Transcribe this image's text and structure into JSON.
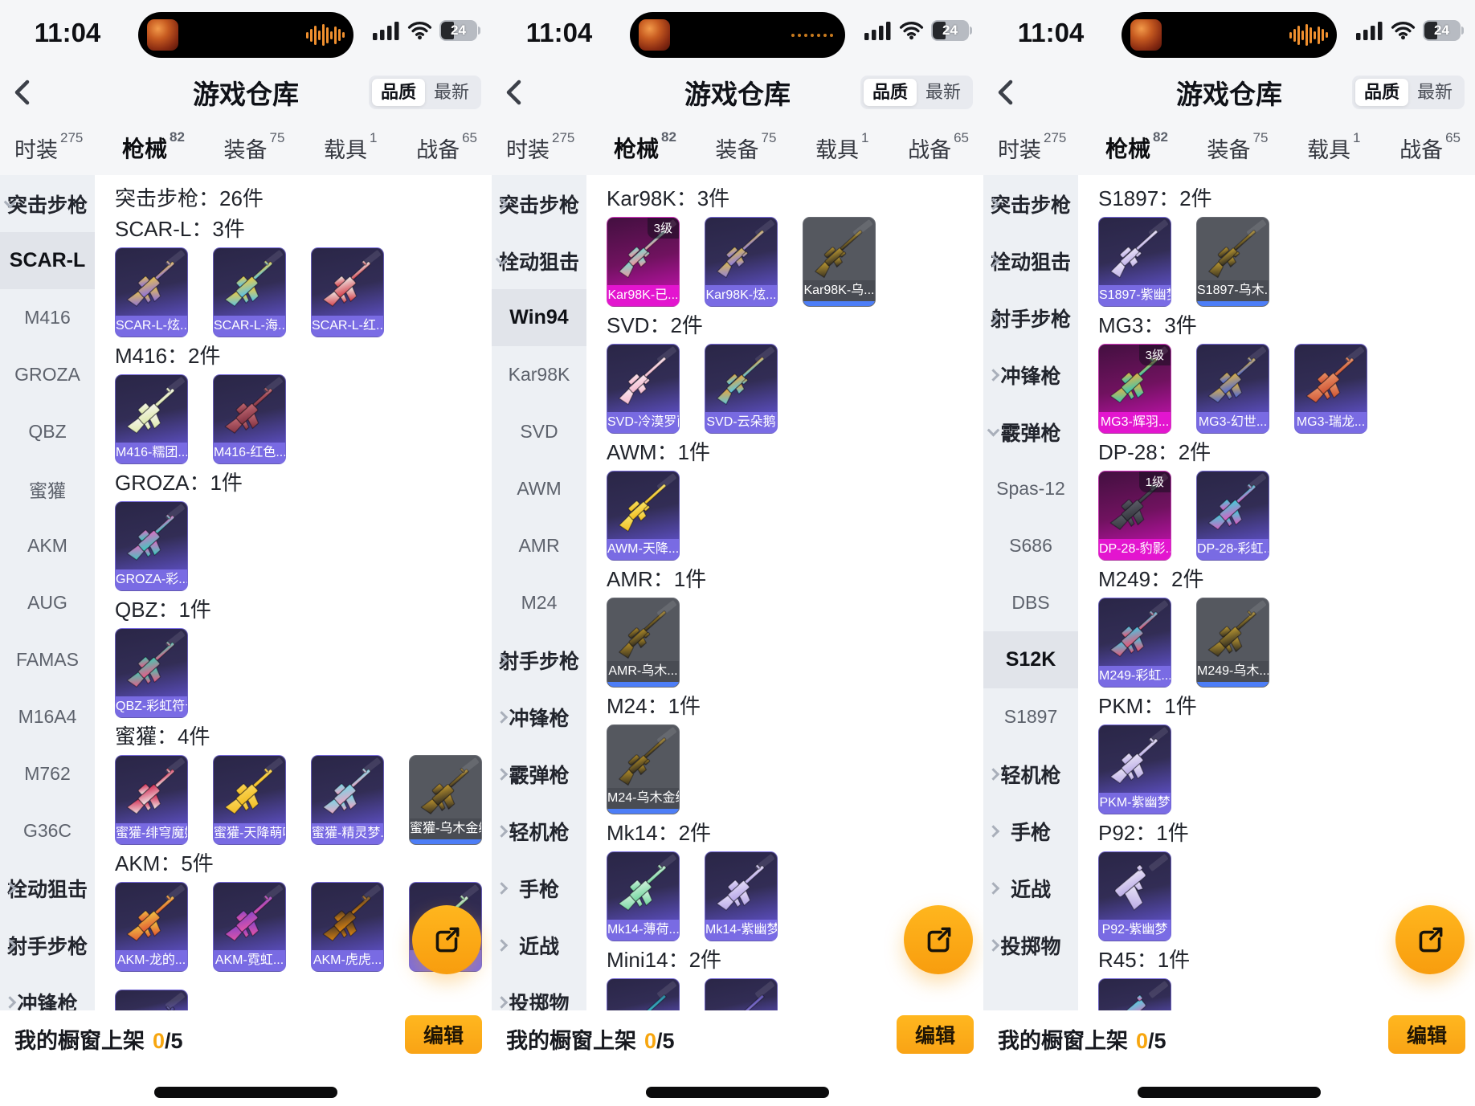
{
  "shared": {
    "time": "11:04",
    "battery": "24",
    "title": "游戏仓库",
    "sort_options": [
      "品质",
      "最新"
    ],
    "sort_active": "品质",
    "tabs": [
      {
        "label": "时装",
        "count": "275",
        "active": false
      },
      {
        "label": "枪械",
        "count": "82",
        "active": true
      },
      {
        "label": "装备",
        "count": "75",
        "active": false
      },
      {
        "label": "载具",
        "count": "1",
        "active": false
      },
      {
        "label": "战备",
        "count": "65",
        "active": false
      }
    ],
    "shelf_label": "我的橱窗上架",
    "shelf_count": "0",
    "shelf_total": "/5",
    "edit_button": "编辑",
    "icons": {
      "back": "back-chevron",
      "share": "share-export",
      "signal": "cellular-signal",
      "wifi": "wifi",
      "battery": "battery-24"
    },
    "colors": {
      "accent_orange": "#F9A315",
      "purple_rarity": "#6F61DD",
      "pink_rarity": "#E315CF",
      "blue_quality_bar": "#4D7EF7",
      "sidebar_bg": "#EDF0F4"
    }
  },
  "panels": [
    {
      "island": "waveform",
      "sidebar": [
        {
          "t": "cat",
          "label": "突击步枪",
          "state": "expanded"
        },
        {
          "t": "sub",
          "label": "SCAR-L",
          "selected": true
        },
        {
          "t": "sub",
          "label": "M416"
        },
        {
          "t": "sub",
          "label": "GROZA"
        },
        {
          "t": "sub",
          "label": "QBZ"
        },
        {
          "t": "sub",
          "label": "蜜獾"
        },
        {
          "t": "sub",
          "label": "AKM"
        },
        {
          "t": "sub",
          "label": "AUG"
        },
        {
          "t": "sub",
          "label": "FAMAS"
        },
        {
          "t": "sub",
          "label": "M16A4"
        },
        {
          "t": "sub",
          "label": "M762"
        },
        {
          "t": "sub",
          "label": "G36C"
        },
        {
          "t": "cat",
          "label": "栓动狙击",
          "state": "collapsed"
        },
        {
          "t": "cat",
          "label": "射手步枪",
          "state": "collapsed"
        },
        {
          "t": "cat",
          "label": "冲锋枪",
          "state": "collapsed"
        }
      ],
      "sections": [
        {
          "title": "突击步枪：26件",
          "items": []
        },
        {
          "title": "SCAR-L：3件",
          "items": [
            {
              "label": "SCAR-L-炫...",
              "rarity": "purple",
              "gun": "rifle",
              "colors": [
                "#8a6fe0",
                "#e6c050"
              ]
            },
            {
              "label": "SCAR-L-海...",
              "rarity": "purple",
              "gun": "rifle",
              "colors": [
                "#53c2f0",
                "#f2cb3e"
              ]
            },
            {
              "label": "SCAR-L-红...",
              "rarity": "purple",
              "gun": "rifle",
              "colors": [
                "#d23441",
                "#f0eeea"
              ]
            }
          ]
        },
        {
          "title": "M416：2件",
          "items": [
            {
              "label": "M416-糯团...",
              "rarity": "purple",
              "gun": "rifle",
              "colors": [
                "#dce8a8",
                "#f6f6ee"
              ]
            },
            {
              "label": "M416-红色...",
              "rarity": "purple",
              "gun": "rifle",
              "colors": [
                "#7e2e3e",
                "#c26a74"
              ]
            }
          ]
        },
        {
          "title": "GROZA：1件",
          "items": [
            {
              "label": "GROZA-彩...",
              "rarity": "purple",
              "gun": "rifle",
              "colors": [
                "#35cfc0",
                "#e06ac2"
              ]
            }
          ]
        },
        {
          "title": "QBZ：1件",
          "items": [
            {
              "label": "QBZ-彩虹符号",
              "rarity": "purple",
              "gun": "rifle",
              "colors": [
                "#ef5585",
                "#43c9b2"
              ]
            }
          ]
        },
        {
          "title": "蜜獾：4件",
          "items": [
            {
              "label": "蜜獾-绯穹魔姬",
              "rarity": "purple",
              "gun": "rifle",
              "colors": [
                "#f2eaea",
                "#d22a52"
              ]
            },
            {
              "label": "蜜獾-天降萌叽",
              "rarity": "purple",
              "gun": "rifle",
              "colors": [
                "#f2ba1e",
                "#fad75c"
              ]
            },
            {
              "label": "蜜獾-精灵梦...",
              "rarity": "purple",
              "gun": "rifle",
              "colors": [
                "#f2a2c2",
                "#74d8e8"
              ]
            },
            {
              "label": "蜜獾-乌木金纹",
              "rarity": "gray",
              "gun": "rifle",
              "colors": [
                "#2c2822",
                "#c2982e"
              ]
            }
          ]
        },
        {
          "title": "AKM：5件",
          "items": [
            {
              "label": "AKM-龙的...",
              "rarity": "purple",
              "gun": "rifle",
              "colors": [
                "#e05433",
                "#f1c343"
              ]
            },
            {
              "label": "AKM-霓虹...",
              "rarity": "purple",
              "gun": "rifle",
              "colors": [
                "#e653a6",
                "#8a46c6"
              ]
            },
            {
              "label": "AKM-虎虎...",
              "rarity": "purple",
              "gun": "rifle",
              "colors": [
                "#e2870f",
                "#4a3826"
              ]
            },
            {
              "label": "",
              "rarity": "purple",
              "gun": "rifle",
              "colors": [
                "#57c468",
                "#ececec"
              ]
            },
            {
              "label": "",
              "rarity": "purple",
              "gun": "rifle",
              "colors": [
                "#4a4480",
                "#5a54a0"
              ],
              "partial": 44
            }
          ]
        }
      ]
    },
    {
      "island": "dots",
      "sidebar": [
        {
          "t": "cat",
          "label": "突击步枪",
          "state": "collapsed"
        },
        {
          "t": "cat",
          "label": "栓动狙击",
          "state": "expanded"
        },
        {
          "t": "sub",
          "label": "Win94",
          "selected": true
        },
        {
          "t": "sub",
          "label": "Kar98K"
        },
        {
          "t": "sub",
          "label": "SVD"
        },
        {
          "t": "sub",
          "label": "AWM"
        },
        {
          "t": "sub",
          "label": "AMR"
        },
        {
          "t": "sub",
          "label": "M24"
        },
        {
          "t": "cat",
          "label": "射手步枪",
          "state": "collapsed"
        },
        {
          "t": "cat",
          "label": "冲锋枪",
          "state": "collapsed"
        },
        {
          "t": "cat",
          "label": "霰弹枪",
          "state": "collapsed"
        },
        {
          "t": "cat",
          "label": "轻机枪",
          "state": "collapsed"
        },
        {
          "t": "cat",
          "label": "手枪",
          "state": "collapsed"
        },
        {
          "t": "cat",
          "label": "近战",
          "state": "collapsed"
        },
        {
          "t": "cat",
          "label": "投掷物",
          "state": "collapsed"
        }
      ],
      "sections": [
        {
          "title": "Kar98K：3件",
          "items": [
            {
              "label": "Kar98K-已...",
              "rarity": "pink",
              "badge": "3级",
              "gun": "sniper",
              "colors": [
                "#f2919e",
                "#7fd8cf"
              ]
            },
            {
              "label": "Kar98K-炫...",
              "rarity": "purple",
              "gun": "sniper",
              "colors": [
                "#8d7ce4",
                "#d9ba52"
              ]
            },
            {
              "label": "Kar98K-乌...",
              "rarity": "gray",
              "gun": "sniper",
              "colors": [
                "#2e2920",
                "#bd9a32"
              ]
            }
          ]
        },
        {
          "title": "SVD：2件",
          "items": [
            {
              "label": "SVD-冷漠罗丽",
              "rarity": "purple",
              "gun": "sniper",
              "colors": [
                "#f4b6cc",
                "#fae6ee"
              ]
            },
            {
              "label": "SVD-云朵鹅",
              "rarity": "purple",
              "gun": "sniper",
              "colors": [
                "#54c6ea",
                "#eaa63c"
              ]
            }
          ]
        },
        {
          "title": "AWM：1件",
          "items": [
            {
              "label": "AWM-天降...",
              "rarity": "purple",
              "gun": "sniper",
              "colors": [
                "#f1bb1c",
                "#f8e468"
              ]
            }
          ]
        },
        {
          "title": "AMR：1件",
          "items": [
            {
              "label": "AMR-乌木...",
              "rarity": "gray",
              "gun": "sniper",
              "colors": [
                "#2e2a20",
                "#b28d28"
              ]
            }
          ]
        },
        {
          "title": "M24：1件",
          "items": [
            {
              "label": "M24-乌木金纹",
              "rarity": "gray",
              "gun": "sniper",
              "colors": [
                "#2e2a20",
                "#b28d28"
              ]
            }
          ]
        },
        {
          "title": "Mk14：2件",
          "items": [
            {
              "label": "Mk14-薄荷...",
              "rarity": "purple",
              "gun": "rifle",
              "colors": [
                "#6fd49c",
                "#d2f2de"
              ]
            },
            {
              "label": "Mk14-紫幽梦",
              "rarity": "purple",
              "gun": "rifle",
              "colors": [
                "#b4a4e6",
                "#e4dcf8"
              ]
            }
          ]
        },
        {
          "title": "Mini14：2件",
          "items": [
            {
              "label": "",
              "rarity": "purple",
              "gun": "sniper",
              "colors": [
                "#3fc0cf",
                "#2a7f9e"
              ],
              "partial": 70
            },
            {
              "label": "",
              "rarity": "purple",
              "gun": "sniper",
              "colors": [
                "#8f7fd8",
                "#5a4fae"
              ],
              "partial": 70
            }
          ]
        }
      ]
    },
    {
      "island": "waveform",
      "sidebar": [
        {
          "t": "cat",
          "label": "突击步枪",
          "state": "collapsed"
        },
        {
          "t": "cat",
          "label": "栓动狙击",
          "state": "collapsed"
        },
        {
          "t": "cat",
          "label": "射手步枪",
          "state": "collapsed"
        },
        {
          "t": "cat",
          "label": "冲锋枪",
          "state": "collapsed"
        },
        {
          "t": "cat",
          "label": "霰弹枪",
          "state": "expanded"
        },
        {
          "t": "sub",
          "label": "Spas-12"
        },
        {
          "t": "sub",
          "label": "S686"
        },
        {
          "t": "sub",
          "label": "DBS"
        },
        {
          "t": "sub",
          "label": "S12K",
          "selected": true
        },
        {
          "t": "sub",
          "label": "S1897"
        },
        {
          "t": "cat",
          "label": "轻机枪",
          "state": "collapsed"
        },
        {
          "t": "cat",
          "label": "手枪",
          "state": "collapsed"
        },
        {
          "t": "cat",
          "label": "近战",
          "state": "collapsed"
        },
        {
          "t": "cat",
          "label": "投掷物",
          "state": "collapsed"
        }
      ],
      "sections": [
        {
          "title": "S1897：2件",
          "items": [
            {
              "label": "S1897-紫幽梦",
              "rarity": "purple",
              "gun": "sniper",
              "colors": [
                "#bfb0e8",
                "#ece6f8"
              ]
            },
            {
              "label": "S1897-乌木...",
              "rarity": "gray",
              "gun": "sniper",
              "colors": [
                "#2e2a20",
                "#bd9a32"
              ]
            }
          ]
        },
        {
          "title": "MG3：3件",
          "items": [
            {
              "label": "MG3-辉羽...",
              "rarity": "pink",
              "badge": "3级",
              "gun": "rifle",
              "colors": [
                "#2fc8b6",
                "#e8b244"
              ]
            },
            {
              "label": "MG3-幻世...",
              "rarity": "purple",
              "gun": "rifle",
              "colors": [
                "#4a66dd",
                "#deb244"
              ]
            },
            {
              "label": "MG3-瑞龙...",
              "rarity": "purple",
              "gun": "rifle",
              "colors": [
                "#cf5030",
                "#e9956a"
              ]
            }
          ]
        },
        {
          "title": "DP-28：2件",
          "items": [
            {
              "label": "DP-28-豹影...",
              "rarity": "pink",
              "badge": "1级",
              "gun": "rifle",
              "colors": [
                "#33343c",
                "#5c5e68"
              ]
            },
            {
              "label": "DP-28-彩虹...",
              "rarity": "purple",
              "gun": "rifle",
              "colors": [
                "#e05ac2",
                "#3ecfd8"
              ]
            }
          ]
        },
        {
          "title": "M249：2件",
          "items": [
            {
              "label": "M249-彩虹...",
              "rarity": "purple",
              "gun": "rifle",
              "colors": [
                "#ef4f6f",
                "#49c6e2"
              ]
            },
            {
              "label": "M249-乌木...",
              "rarity": "gray",
              "gun": "rifle",
              "colors": [
                "#2e2a20",
                "#bd9a32"
              ]
            }
          ]
        },
        {
          "title": "PKM：1件",
          "items": [
            {
              "label": "PKM-紫幽梦",
              "rarity": "purple",
              "gun": "rifle",
              "colors": [
                "#b9aae6",
                "#e8e2f6"
              ]
            }
          ]
        },
        {
          "title": "P92：1件",
          "items": [
            {
              "label": "P92-紫幽梦",
              "rarity": "purple",
              "gun": "pistol",
              "colors": [
                "#baaae6",
                "#e8e2f6"
              ]
            }
          ]
        },
        {
          "title": "R45：1件",
          "items": [
            {
              "label": "",
              "rarity": "purple",
              "gun": "pistol",
              "colors": [
                "#f05fb4",
                "#53d2e2"
              ],
              "partial": 70
            }
          ]
        }
      ]
    }
  ]
}
